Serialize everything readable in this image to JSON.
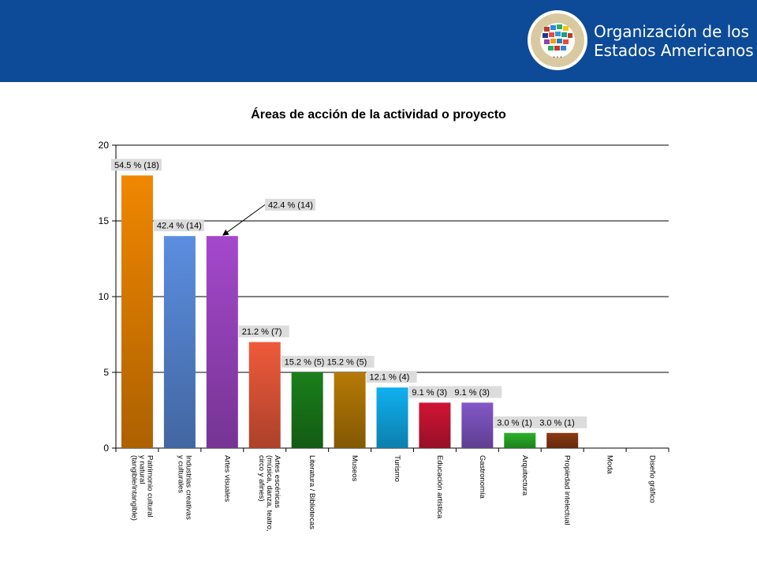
{
  "header": {
    "org_line1": "Organización de los",
    "org_line2": "Estados Americanos",
    "seal_text": "ORGANIZACIÓN DE LOS ESTADOS AMERICANOS",
    "background_color": "#0d4a97"
  },
  "chart_data": {
    "type": "bar",
    "title": "Áreas de acción de la actividad o proyecto",
    "xlabel": "",
    "ylabel": "",
    "ylim": [
      0,
      20
    ],
    "yticks": [
      "0",
      "5",
      "10",
      "15",
      "20"
    ],
    "grid": true,
    "categories": [
      [
        "Patrimonio cultural",
        "y natural",
        "(tangible/intangible)"
      ],
      [
        "Industrias creativas",
        "y culturales"
      ],
      [
        "Artes visuales"
      ],
      [
        "Artes escénicas",
        "(música, danza, teatro,",
        "circo y afines)"
      ],
      [
        "Literatura / Bibliotecas"
      ],
      [
        "Museos"
      ],
      [
        "Turismo"
      ],
      [
        "Educación artística"
      ],
      [
        "Gastronomía"
      ],
      [
        "Arquitectura"
      ],
      [
        "Propiedad intelectual"
      ],
      [
        "Moda"
      ],
      [
        "Diseño gráfico"
      ]
    ],
    "values": [
      18,
      14,
      14,
      7,
      5,
      5,
      4,
      3,
      3,
      1,
      1,
      0,
      0
    ],
    "data_labels": [
      "54.5 % (18)",
      "42.4 % (14)",
      "42.4 % (14)",
      "21.2 % (7)",
      "15.2 % (5)",
      "15.2 % (5)",
      "12.1 % (4)",
      "9.1 % (3)",
      "9.1 % (3)",
      "3.0 % (1)",
      "3.0 % (1)",
      "",
      ""
    ],
    "colors": [
      "#f08700",
      "#5b8ee0",
      "#a448cc",
      "#ef5a3b",
      "#1a7f1a",
      "#b67a05",
      "#10b0f0",
      "#d01535",
      "#8358c8",
      "#28b228",
      "#8c3a14",
      "#888888",
      "#888888"
    ]
  }
}
